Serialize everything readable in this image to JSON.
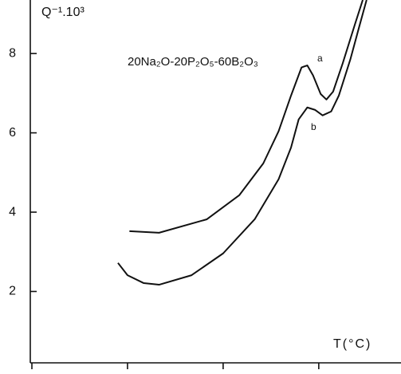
{
  "chart_data": {
    "type": "line",
    "y_label": "Q⁻¹.10³",
    "x_label": "T(°C)",
    "annotation": "20Na₂O-20P₂O₅-60B₂O₃",
    "color": "#111111",
    "xlim": [
      0,
      3.86
    ],
    "ylim": [
      0.2,
      9.35
    ],
    "xticks": [
      0,
      1,
      2,
      3
    ],
    "yticks": [
      2,
      4,
      6,
      8
    ],
    "series": [
      {
        "name": "a",
        "color": "#111111",
        "x": [
          1.02,
          1.33,
          1.83,
          2.17,
          2.42,
          2.58,
          2.71,
          2.82,
          2.88,
          2.94,
          3.02,
          3.08,
          3.15,
          3.25,
          3.38,
          3.46
        ],
        "values": [
          3.52,
          3.48,
          3.82,
          4.43,
          5.23,
          6.04,
          6.94,
          7.65,
          7.7,
          7.45,
          6.98,
          6.84,
          7.04,
          7.75,
          8.75,
          9.35
        ]
      },
      {
        "name": "b",
        "color": "#111111",
        "x": [
          0.9,
          1.0,
          1.17,
          1.33,
          1.67,
          2.0,
          2.33,
          2.58,
          2.71,
          2.79,
          2.88,
          2.96,
          3.04,
          3.13,
          3.21,
          3.33,
          3.42,
          3.5
        ],
        "values": [
          2.72,
          2.41,
          2.21,
          2.17,
          2.41,
          2.96,
          3.82,
          4.83,
          5.63,
          6.34,
          6.64,
          6.58,
          6.44,
          6.54,
          6.94,
          7.85,
          8.65,
          9.35
        ]
      }
    ]
  }
}
